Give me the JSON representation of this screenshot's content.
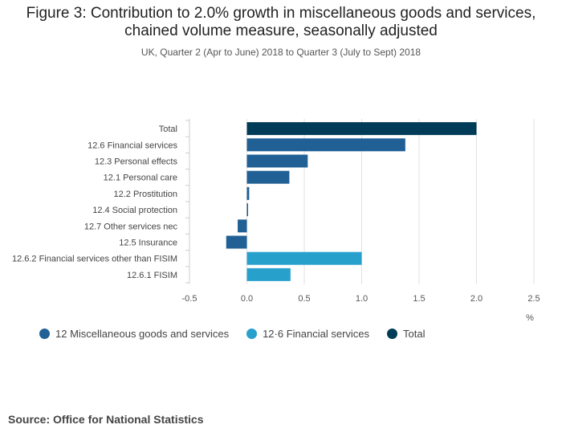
{
  "header": {
    "title_line1": "Figure 3: Contribution to 2.0% growth in miscellaneous goods and services,",
    "title_line2": "chained volume measure, seasonally adjusted",
    "subtitle": "UK, Quarter 2 (Apr to June) 2018 to Quarter 3 (July to Sept) 2018"
  },
  "footer": {
    "source": "Source: Office for National Statistics"
  },
  "chart_data": {
    "type": "bar",
    "orientation": "horizontal",
    "title": "Figure 3: Contribution to 2.0% growth in miscellaneous goods and services, chained volume measure, seasonally adjusted",
    "subtitle": "UK, Quarter 2 (Apr to June) 2018 to Quarter 3 (July to Sept) 2018",
    "xlabel": "%",
    "xlim": [
      -0.5,
      2.5
    ],
    "xticks": [
      -0.5,
      0.0,
      0.5,
      1.0,
      1.5,
      2.0,
      2.5
    ],
    "xtick_labels": [
      "-0.5",
      "0.0",
      "0.5",
      "1.0",
      "1.5",
      "2.0",
      "2.5"
    ],
    "grid": true,
    "legend_position": "bottom-left",
    "series": [
      {
        "name": "12 Miscellaneous goods and services",
        "color": "#206095"
      },
      {
        "name": "12·6 Financial services",
        "color": "#27a0cc"
      },
      {
        "name": "Total",
        "color": "#003c57"
      }
    ],
    "bars": [
      {
        "label": "Total",
        "value": 2.0,
        "series": 2
      },
      {
        "label": "12.6 Financial services",
        "value": 1.38,
        "series": 0
      },
      {
        "label": "12.3 Personal effects",
        "value": 0.53,
        "series": 0
      },
      {
        "label": "12.1 Personal care",
        "value": 0.37,
        "series": 0
      },
      {
        "label": "12.2 Prostitution",
        "value": 0.02,
        "series": 0
      },
      {
        "label": "12.4 Social protection",
        "value": 0.01,
        "series": 0
      },
      {
        "label": "12.7 Other services nec",
        "value": -0.08,
        "series": 0
      },
      {
        "label": "12.5 Insurance",
        "value": -0.18,
        "series": 0
      },
      {
        "label": "12.6.2 Financial services other than FISIM",
        "value": 1.0,
        "series": 1
      },
      {
        "label": "12.6.1 FISIM",
        "value": 0.38,
        "series": 1
      }
    ]
  }
}
